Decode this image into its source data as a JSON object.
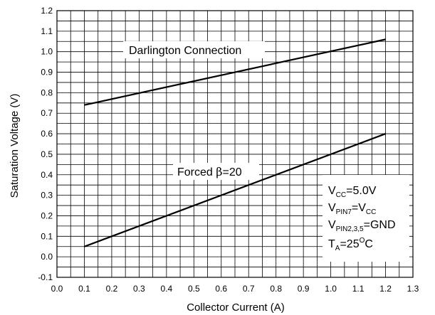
{
  "chart_data": {
    "type": "line",
    "xlabel": "Collector Current (A)",
    "ylabel": "Saturation Voltage (V)",
    "xlim": [
      0.0,
      1.3
    ],
    "ylim": [
      -0.1,
      1.2
    ],
    "x_major_ticks": [
      "0.0",
      "0.1",
      "0.2",
      "0.3",
      "0.4",
      "0.5",
      "0.6",
      "0.7",
      "0.8",
      "0.9",
      "1.0",
      "1.1",
      "1.2",
      "1.3"
    ],
    "y_major_ticks": [
      "-0.1",
      "0.0",
      "0.1",
      "0.2",
      "0.3",
      "0.4",
      "0.5",
      "0.6",
      "0.7",
      "0.8",
      "0.9",
      "1.0",
      "1.1",
      "1.2"
    ],
    "grid": true,
    "series": [
      {
        "name": "Darlington Connection",
        "x": [
          0.1,
          1.2
        ],
        "y": [
          0.74,
          1.06
        ]
      },
      {
        "name": "Forced β=20",
        "x": [
          0.1,
          1.2
        ],
        "y": [
          0.05,
          0.6
        ]
      }
    ],
    "annotations": {
      "darlington": "Darlington Connection",
      "forced_prefix": "Forced ",
      "forced_beta": "β",
      "forced_suffix": "=20"
    },
    "conditions": {
      "vcc_main": "V",
      "vcc_sub": "CC",
      "vcc_value": "=5.0V",
      "vpin7_main": "V",
      "vpin7_sub": "PIN7",
      "vpin7_eq": "=V",
      "vpin7_eq_sub": "CC",
      "vpin235_main": "V",
      "vpin235_sub": "PIN2,3,5",
      "vpin235_value": "=GND",
      "ta_main": "T",
      "ta_sub": "A",
      "ta_eq": "=25",
      "ta_sup": "O",
      "ta_unit": "C"
    }
  }
}
